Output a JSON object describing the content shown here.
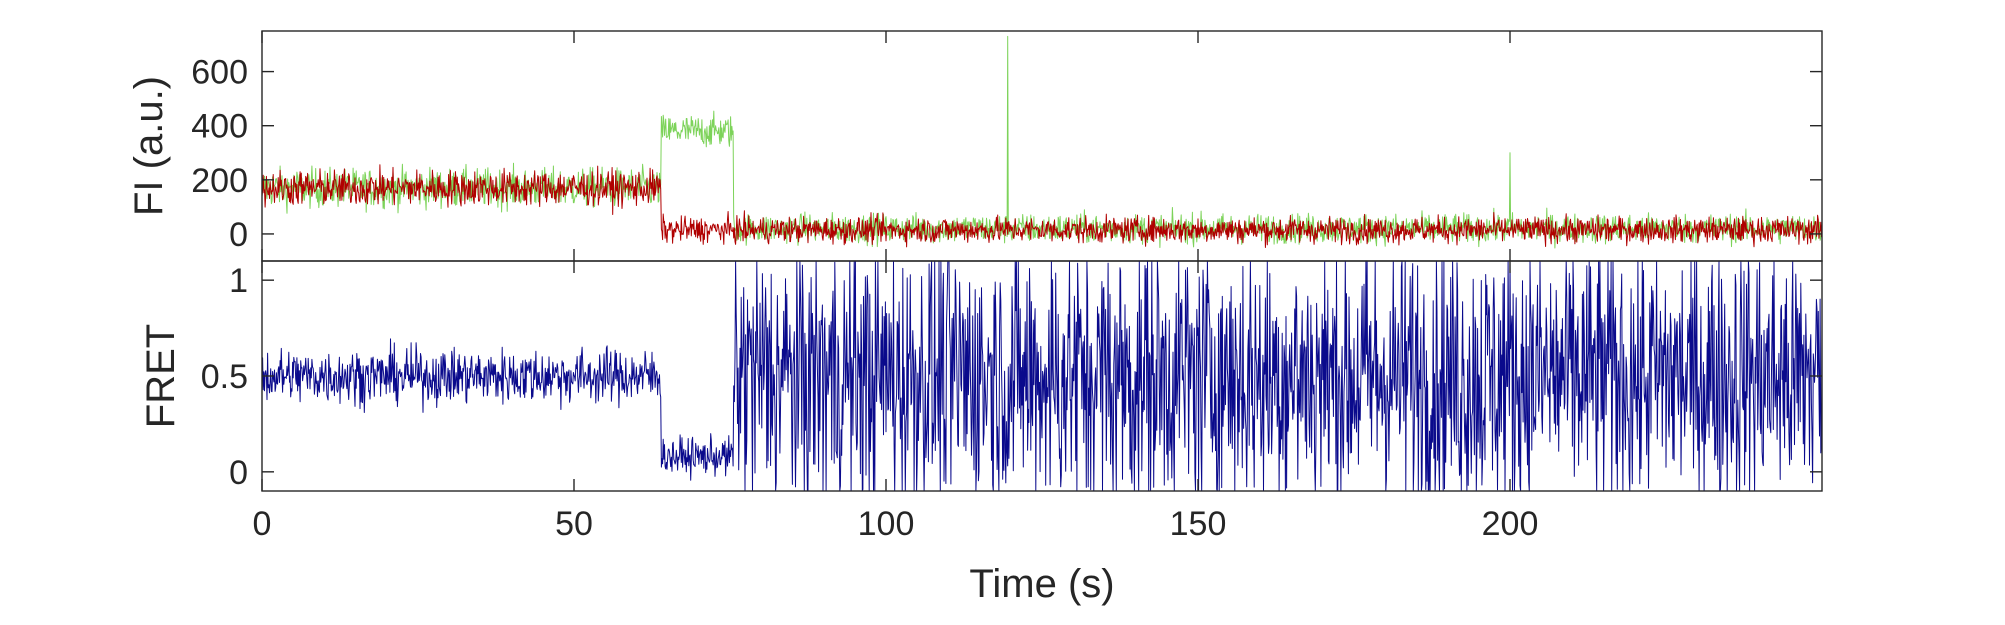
{
  "chart_data": [
    {
      "type": "line",
      "panel": "top",
      "ylabel": "FI (a.u.)",
      "xlim": [
        0,
        250
      ],
      "ylim": [
        -100,
        750
      ],
      "yticks": [
        0,
        200,
        400,
        600
      ],
      "ytick_labels": [
        "0",
        "200",
        "400",
        "600"
      ],
      "grid": false,
      "series": [
        {
          "color": "#7dd35a",
          "segments": [
            {
              "t_start": 0,
              "t_end": 64,
              "mean": 170,
              "noise": 60
            },
            {
              "t_start": 64,
              "t_end": 75.5,
              "mean": 380,
              "noise": 50
            },
            {
              "t_start": 75.5,
              "t_end": 250,
              "mean": 20,
              "noise": 45
            }
          ],
          "spikes": [
            {
              "t": 119.5,
              "value": 730
            },
            {
              "t": 200,
              "value": 300
            }
          ]
        },
        {
          "color": "#b00000",
          "segments": [
            {
              "t_start": 0,
              "t_end": 64,
              "mean": 170,
              "noise": 55
            },
            {
              "t_start": 64,
              "t_end": 250,
              "mean": 15,
              "noise": 40
            }
          ]
        }
      ]
    },
    {
      "type": "line",
      "panel": "bottom",
      "ylabel": "FRET",
      "xlabel": "Time (s)",
      "xlim": [
        0,
        250
      ],
      "ylim": [
        -0.1,
        1.1
      ],
      "xticks": [
        0,
        50,
        100,
        150,
        200
      ],
      "xtick_labels": [
        "0",
        "50",
        "100",
        "150",
        "200"
      ],
      "yticks": [
        0,
        0.5,
        1
      ],
      "ytick_labels": [
        "0",
        "0.5",
        "1"
      ],
      "grid": false,
      "series": [
        {
          "color": "#0a0a8c",
          "segments": [
            {
              "t_start": 0,
              "t_end": 64,
              "mean": 0.5,
              "noise": 0.12
            },
            {
              "t_start": 64,
              "t_end": 75.5,
              "mean": 0.08,
              "noise": 0.08
            },
            {
              "t_start": 75.5,
              "t_end": 250,
              "mean": 0.5,
              "noise": 0.6
            }
          ]
        }
      ]
    }
  ]
}
